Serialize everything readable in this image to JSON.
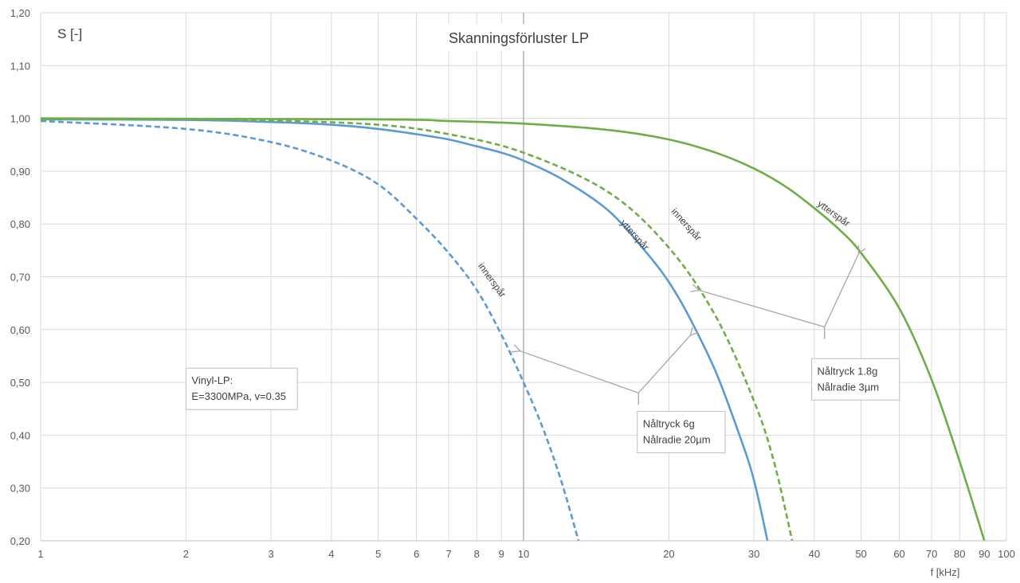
{
  "chart_data": {
    "type": "line",
    "title": "Skanningsförluster LP",
    "ylabel": "S [-]",
    "xlabel": "f [kHz]",
    "xscale": "log",
    "xlim": [
      1,
      100
    ],
    "ylim": [
      0.2,
      1.2
    ],
    "grid": true,
    "x_ticks": [
      1,
      2,
      3,
      4,
      5,
      6,
      7,
      8,
      9,
      10,
      20,
      30,
      40,
      50,
      60,
      70,
      80,
      90,
      100
    ],
    "x_tick_labels": [
      "1",
      "2",
      "3",
      "4",
      "5",
      "6",
      "7",
      "8",
      "9",
      "10",
      "20",
      "30",
      "40",
      "50",
      "60",
      "70",
      "80",
      "90",
      "100"
    ],
    "y_ticks": [
      0.2,
      0.3,
      0.4,
      0.5,
      0.6,
      0.7,
      0.8,
      0.9,
      1.0,
      1.1,
      1.2
    ],
    "y_tick_labels": [
      "0,20",
      "0,30",
      "0,40",
      "0,50",
      "0,60",
      "0,70",
      "0,80",
      "0,90",
      "1,00",
      "1,10",
      "1,20"
    ],
    "series": [
      {
        "label": "innerspår",
        "color": "#5B9BD5",
        "dashed": true,
        "label_at": [
          8.5,
          0.69
        ],
        "label_angle": 54,
        "points": [
          [
            1,
            0.995
          ],
          [
            2,
            0.98
          ],
          [
            3,
            0.955
          ],
          [
            4,
            0.92
          ],
          [
            5,
            0.875
          ],
          [
            6,
            0.81
          ],
          [
            7,
            0.745
          ],
          [
            8,
            0.675
          ],
          [
            9,
            0.59
          ],
          [
            10,
            0.5
          ],
          [
            11,
            0.41
          ],
          [
            12,
            0.31
          ],
          [
            13,
            0.2
          ]
        ]
      },
      {
        "label": "ytterspår",
        "color": "#5B9BD5",
        "dashed": false,
        "label_at": [
          16.8,
          0.775
        ],
        "label_angle": 48,
        "points": [
          [
            1,
            0.998
          ],
          [
            2,
            0.997
          ],
          [
            3,
            0.993
          ],
          [
            4,
            0.988
          ],
          [
            5,
            0.98
          ],
          [
            6,
            0.97
          ],
          [
            7,
            0.96
          ],
          [
            8,
            0.947
          ],
          [
            9,
            0.935
          ],
          [
            10,
            0.92
          ],
          [
            12,
            0.885
          ],
          [
            15,
            0.825
          ],
          [
            18,
            0.745
          ],
          [
            20,
            0.69
          ],
          [
            22,
            0.625
          ],
          [
            25,
            0.52
          ],
          [
            28,
            0.4
          ],
          [
            30,
            0.315
          ],
          [
            32,
            0.2
          ]
        ]
      },
      {
        "label": "innerspår",
        "color": "#70AD47",
        "dashed": true,
        "label_at": [
          21.5,
          0.795
        ],
        "label_angle": 48,
        "points": [
          [
            1,
            0.998
          ],
          [
            2,
            0.998
          ],
          [
            3,
            0.996
          ],
          [
            5,
            0.988
          ],
          [
            7,
            0.97
          ],
          [
            10,
            0.935
          ],
          [
            15,
            0.86
          ],
          [
            20,
            0.755
          ],
          [
            25,
            0.625
          ],
          [
            30,
            0.465
          ],
          [
            33,
            0.35
          ],
          [
            36,
            0.2
          ]
        ]
      },
      {
        "label": "ytterspår",
        "color": "#70AD47",
        "dashed": false,
        "label_at": [
          43.5,
          0.815
        ],
        "label_angle": 36,
        "points": [
          [
            1,
            1.0
          ],
          [
            5,
            0.998
          ],
          [
            7,
            0.995
          ],
          [
            10,
            0.99
          ],
          [
            15,
            0.978
          ],
          [
            20,
            0.96
          ],
          [
            25,
            0.935
          ],
          [
            30,
            0.905
          ],
          [
            35,
            0.87
          ],
          [
            40,
            0.83
          ],
          [
            45,
            0.79
          ],
          [
            50,
            0.745
          ],
          [
            60,
            0.64
          ],
          [
            70,
            0.505
          ],
          [
            80,
            0.35
          ],
          [
            90,
            0.2
          ]
        ]
      }
    ],
    "annotations": [
      {
        "lines": [
          "Vinyl-LP:",
          "E=3300MPa, v=0.35"
        ],
        "anchor": [
          2.0,
          0.527
        ]
      },
      {
        "lines": [
          "Nåltryck 6g",
          "Nålradie 20µm"
        ],
        "anchor": [
          17.2,
          0.445
        ],
        "arrow_root": [
          17.3,
          0.48
        ],
        "arrows_to": [
          [
            9.8,
            0.56
          ],
          [
            22.2,
            0.59
          ]
        ]
      },
      {
        "lines": [
          "Nåltryck 1.8g",
          "Nålradie 3µm"
        ],
        "anchor": [
          39.5,
          0.545
        ],
        "arrow_root": [
          42,
          0.605
        ],
        "arrows_to": [
          [
            23,
            0.675
          ],
          [
            49.5,
            0.745
          ]
        ]
      }
    ]
  }
}
